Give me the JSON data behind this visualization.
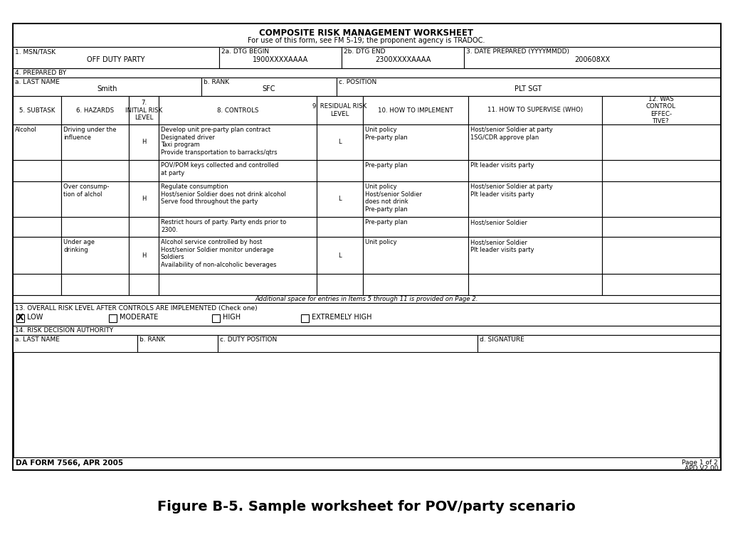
{
  "title_line1": "COMPOSITE RISK MANAGEMENT WORKSHEET",
  "title_line2": "For use of this form, see FM 5-19; the proponent agency is TRADOC.",
  "msn_task_label": "1. MSN/TASK",
  "msn_task_value": "OFF DUTY PARTY",
  "dtg_begin_label": "2a. DTG BEGIN",
  "dtg_begin_value": "1900XXXXAAAA",
  "dtg_end_label": "2b. DTG END",
  "dtg_end_value": "2300XXXXAAAA",
  "date_prepared_label": "3. DATE PREPARED (YYYYMMDD)",
  "date_prepared_value": "200608XX",
  "prepared_by_label": "4. PREPARED BY",
  "last_name_label": "a. LAST NAME",
  "last_name_value": "Smith",
  "rank_label": "b. RANK",
  "rank_value": "SFC",
  "position_label": "c. POSITION",
  "position_value": "PLT SGT",
  "col5_label": "5. SUBTASK",
  "col6_label": "6. HAZARDS",
  "col7_label": "7.\nINITIAL RISK\nLEVEL",
  "col8_label": "8. CONTROLS",
  "col9_label": "9. RESIDUAL RISK\nLEVEL",
  "col10_label": "10. HOW TO IMPLEMENT",
  "col11_label": "11. HOW TO SUPERVISE (WHO)",
  "col12_label": "12. WAS\nCONTROL\nEFFEC-\nTIVE?",
  "rows": [
    {
      "subtask": "Alcohol",
      "hazard": "Driving under the\ninfluence",
      "initial_risk": "H",
      "controls": "Develop unit pre-party plan contract\nDesignated driver\nTaxi program\nProvide transportation to barracks/qtrs",
      "residual_risk": "L",
      "implement": "Unit policy\nPre-party plan",
      "supervise": "Host/senior Soldier at party\n1SG/CDR approve plan",
      "effective": ""
    },
    {
      "subtask": "",
      "hazard": "",
      "initial_risk": "",
      "controls": "POV/POM keys collected and controlled\nat party",
      "residual_risk": "",
      "implement": "Pre-party plan",
      "supervise": "Plt leader visits party",
      "effective": ""
    },
    {
      "subtask": "",
      "hazard": "Over consump-\ntion of alchol",
      "initial_risk": "H",
      "controls": "Regulate consumption\nHost/senior Soldier does not drink alcohol\nServe food throughout the party",
      "residual_risk": "L",
      "implement": "Unit policy\nHost/senior Soldier\ndoes not drink\nPre-party plan",
      "supervise": "Host/senior Soldier at party\nPlt leader visits party",
      "effective": ""
    },
    {
      "subtask": "",
      "hazard": "",
      "initial_risk": "",
      "controls": "Restrict hours of party. Party ends prior to\n2300.",
      "residual_risk": "",
      "implement": "Pre-party plan",
      "supervise": "Host/senior Soldier",
      "effective": ""
    },
    {
      "subtask": "",
      "hazard": "Under age\ndrinking",
      "initial_risk": "H",
      "controls": "Alcohol service controlled by host\nHost/senior Soldier monitor underage\nSoldiers\nAvailability of non-alcoholic beverages",
      "residual_risk": "L",
      "implement": "Unit policy",
      "supervise": "Host/senior Soldier\nPlt leader visits party",
      "effective": ""
    },
    {
      "subtask": "",
      "hazard": "",
      "initial_risk": "",
      "controls": "",
      "residual_risk": "",
      "implement": "",
      "supervise": "",
      "effective": ""
    }
  ],
  "additional_space_note": "Additional space for entries in Items 5 through 11 is provided on Page 2.",
  "overall_risk_label": "13. OVERALL RISK LEVEL AFTER CONTROLS ARE IMPLEMENTED",
  "overall_risk_label_italic": "(Check one)",
  "risk_options": [
    "LOW",
    "MODERATE",
    "HIGH",
    "EXTREMELY HIGH"
  ],
  "risk_checked": "LOW",
  "risk_decision_label": "14. RISK DECISION AUTHORITY",
  "rda_last_name_label": "a. LAST NAME",
  "rda_rank_label": "b. RANK",
  "rda_duty_label": "c. DUTY POSITION",
  "rda_sig_label": "d. SIGNATURE",
  "form_label": "DA FORM 7566, APR 2005",
  "page_label": "Page 1 of 2",
  "page_label2": "APD V2.00",
  "figure_caption": "Figure B-5. Sample worksheet for POV/party scenario",
  "bg_color": "#ffffff",
  "text_color": "#000000"
}
